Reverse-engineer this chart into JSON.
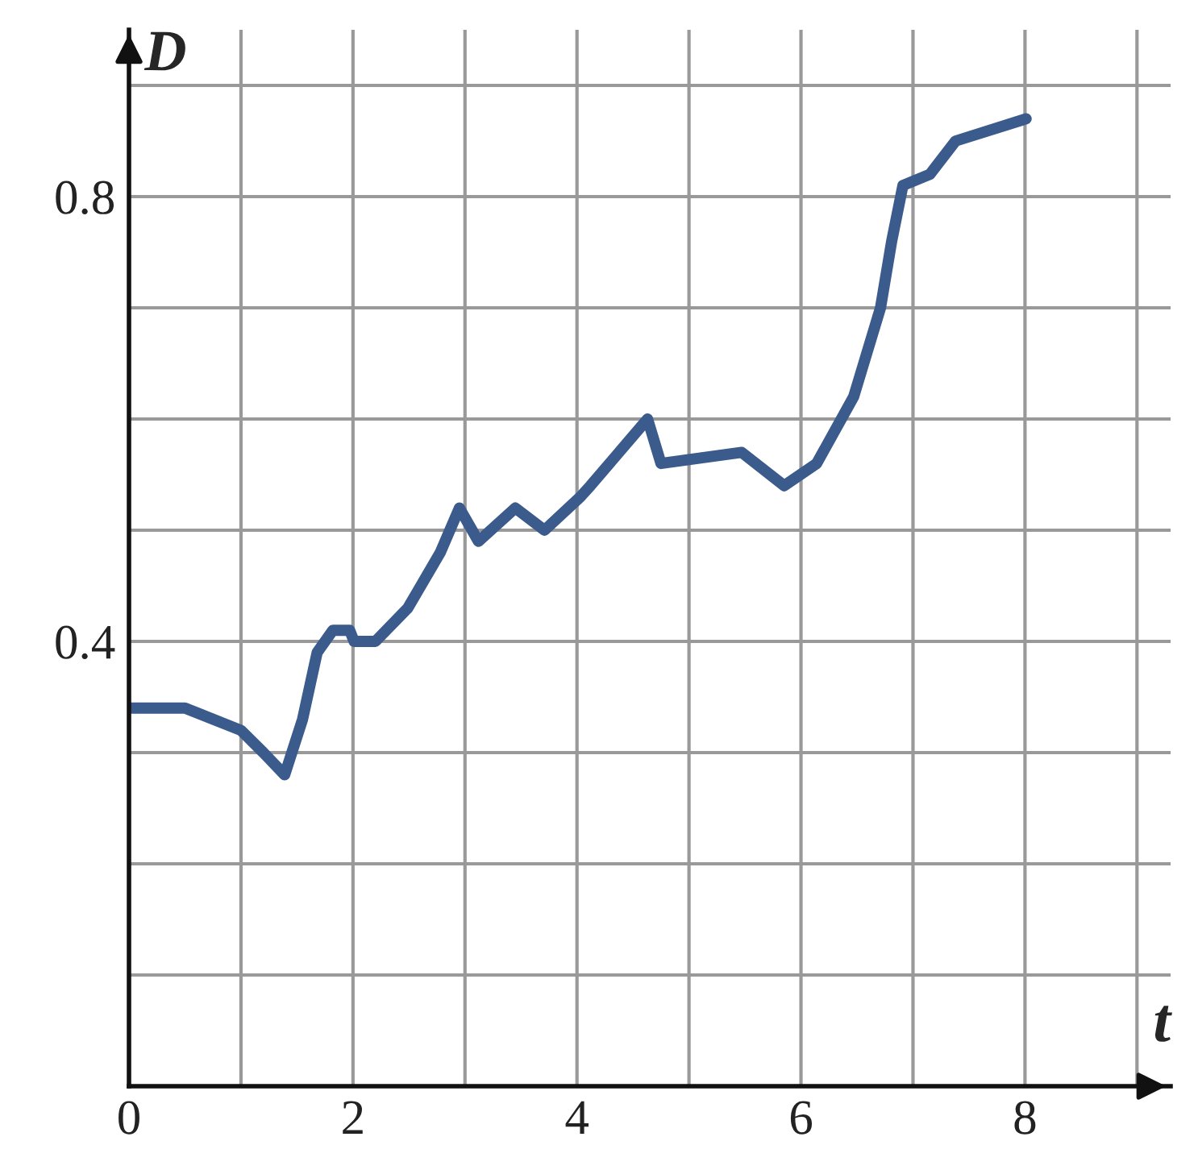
{
  "chart_data": {
    "type": "line",
    "xlabel": "t",
    "ylabel": "D",
    "series": [
      {
        "color": "#3b5b8c",
        "x": [
          0,
          0.5,
          1,
          1.2,
          1.39,
          1.55,
          1.68,
          1.82,
          1.97,
          2.01,
          2.2,
          2.49,
          2.78,
          2.95,
          3.12,
          3.45,
          3.71,
          4.03,
          4.12,
          4.63,
          4.75,
          5.47,
          5.85,
          6.14,
          6.47,
          6.71,
          6.81,
          6.91,
          7.15,
          7.38,
          8.01
        ],
        "values": [
          0.34,
          0.34,
          0.32,
          0.3,
          0.28,
          0.33,
          0.39,
          0.41,
          0.41,
          0.4,
          0.4,
          0.43,
          0.48,
          0.52,
          0.49,
          0.52,
          0.5,
          0.53,
          0.54,
          0.6,
          0.56,
          0.57,
          0.54,
          0.56,
          0.62,
          0.7,
          0.76,
          0.81,
          0.82,
          0.85,
          0.87
        ]
      }
    ],
    "xlim": [
      0,
      9.3
    ],
    "ylim": [
      0,
      0.95
    ],
    "xticks": [
      0,
      {
        "value": 1,
        "label": null
      },
      2,
      {
        "value": 3,
        "label": null
      },
      4,
      {
        "value": 5,
        "label": null
      },
      6,
      {
        "value": 7,
        "label": null
      },
      8,
      {
        "value": 9,
        "label": null
      }
    ],
    "yticks": [
      {
        "value": 0.1,
        "label": null
      },
      {
        "value": 0.2,
        "label": null
      },
      {
        "value": 0.3,
        "label": null
      },
      0.4,
      {
        "value": 0.5,
        "label": null
      },
      {
        "value": 0.6,
        "label": null
      },
      {
        "value": 0.7,
        "label": null
      },
      0.8,
      {
        "value": 0.9,
        "label": null
      }
    ],
    "grid": true,
    "legend": false,
    "marker": "none",
    "line_style": "solid"
  }
}
